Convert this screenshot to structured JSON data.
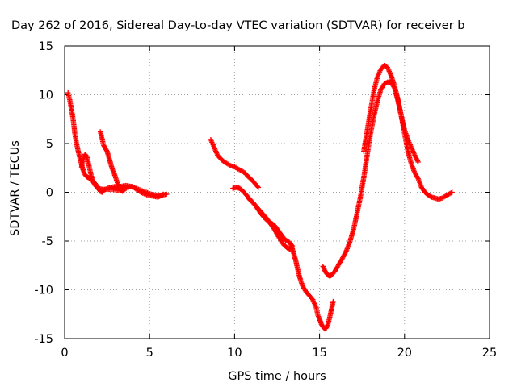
{
  "chart_data": {
    "type": "scatter",
    "title": "Day 262 of 2016, Sidereal Day-to-day VTEC variation (SDTVAR) for receiver b",
    "xlabel": "GPS time / hours",
    "ylabel": "SDTVAR / TECUs",
    "xlim": [
      0,
      25
    ],
    "ylim": [
      -15,
      15
    ],
    "x_ticks": [
      0,
      5,
      10,
      15,
      20,
      25
    ],
    "y_ticks": [
      -15,
      -10,
      -5,
      0,
      5,
      10,
      15
    ],
    "x_tick_labels": [
      "0",
      "5",
      "10",
      "15",
      "20",
      "25"
    ],
    "y_tick_labels": [
      "-15",
      "-10",
      "-5",
      "0",
      "5",
      "10",
      "15"
    ],
    "grid": true,
    "legend": "none",
    "marker": "plus",
    "color": "#ff0000",
    "series": [
      {
        "points": [
          [
            0.2,
            10.2
          ],
          [
            0.3,
            9.5
          ],
          [
            0.4,
            8.5
          ],
          [
            0.5,
            7.5
          ],
          [
            0.55,
            6.8
          ],
          [
            0.6,
            6.0
          ],
          [
            0.7,
            5.0
          ],
          [
            0.8,
            4.2
          ],
          [
            0.9,
            3.5
          ],
          [
            1.0,
            2.8
          ],
          [
            1.1,
            2.2
          ],
          [
            1.2,
            1.8
          ],
          [
            1.3,
            1.6
          ],
          [
            1.4,
            1.5
          ],
          [
            1.5,
            1.4
          ],
          [
            1.6,
            1.3
          ],
          [
            1.7,
            1.1
          ],
          [
            1.8,
            0.9
          ],
          [
            1.9,
            0.6
          ],
          [
            2.0,
            0.3
          ],
          [
            2.1,
            0.1
          ],
          [
            2.2,
            0.0
          ],
          [
            2.3,
            0.2
          ],
          [
            2.5,
            0.4
          ],
          [
            2.7,
            0.5
          ],
          [
            3.0,
            0.6
          ],
          [
            3.3,
            0.6
          ],
          [
            3.6,
            0.7
          ],
          [
            3.9,
            0.6
          ],
          [
            4.2,
            0.4
          ],
          [
            4.5,
            0.2
          ],
          [
            4.8,
            0.0
          ],
          [
            5.1,
            -0.2
          ],
          [
            5.4,
            -0.3
          ],
          [
            5.7,
            -0.3
          ],
          [
            6.0,
            -0.2
          ]
        ]
      },
      {
        "points": [
          [
            1.0,
            2.6
          ],
          [
            1.1,
            3.3
          ],
          [
            1.2,
            3.9
          ],
          [
            1.3,
            3.7
          ],
          [
            1.4,
            3.0
          ],
          [
            1.5,
            2.2
          ],
          [
            1.6,
            1.5
          ],
          [
            1.7,
            1.0
          ],
          [
            1.8,
            0.7
          ],
          [
            1.9,
            0.5
          ],
          [
            2.0,
            0.4
          ],
          [
            2.2,
            0.3
          ],
          [
            2.5,
            0.3
          ],
          [
            2.8,
            0.3
          ],
          [
            3.1,
            0.2
          ],
          [
            3.4,
            0.3
          ],
          [
            3.7,
            0.5
          ],
          [
            4.0,
            0.6
          ],
          [
            4.3,
            0.2
          ],
          [
            4.6,
            -0.1
          ],
          [
            4.9,
            -0.3
          ],
          [
            5.2,
            -0.4
          ],
          [
            5.5,
            -0.5
          ],
          [
            5.8,
            -0.2
          ]
        ]
      },
      {
        "points": [
          [
            2.1,
            6.2
          ],
          [
            2.2,
            5.5
          ],
          [
            2.3,
            4.8
          ],
          [
            2.4,
            4.5
          ],
          [
            2.5,
            4.2
          ],
          [
            2.6,
            3.6
          ],
          [
            2.7,
            3.0
          ],
          [
            2.8,
            2.4
          ],
          [
            2.9,
            2.0
          ],
          [
            3.0,
            1.5
          ],
          [
            3.1,
            1.0
          ],
          [
            3.2,
            0.5
          ],
          [
            3.3,
            0.2
          ],
          [
            3.4,
            0.1
          ],
          [
            3.5,
            0.2
          ]
        ]
      },
      {
        "points": [
          [
            8.6,
            5.4
          ],
          [
            8.7,
            5.0
          ],
          [
            8.8,
            4.6
          ],
          [
            8.9,
            4.2
          ],
          [
            9.0,
            3.8
          ],
          [
            9.2,
            3.4
          ],
          [
            9.4,
            3.1
          ],
          [
            9.6,
            2.9
          ],
          [
            9.8,
            2.7
          ],
          [
            10.0,
            2.6
          ],
          [
            10.2,
            2.4
          ],
          [
            10.4,
            2.2
          ],
          [
            10.6,
            2.0
          ],
          [
            10.8,
            1.6
          ],
          [
            11.0,
            1.3
          ],
          [
            11.2,
            0.9
          ],
          [
            11.4,
            0.5
          ]
        ]
      },
      {
        "points": [
          [
            9.9,
            0.4
          ],
          [
            10.1,
            0.5
          ],
          [
            10.3,
            0.4
          ],
          [
            10.5,
            0.1
          ],
          [
            10.7,
            -0.3
          ],
          [
            10.9,
            -0.7
          ],
          [
            11.1,
            -1.1
          ],
          [
            11.3,
            -1.5
          ],
          [
            11.5,
            -1.9
          ],
          [
            11.7,
            -2.3
          ],
          [
            11.9,
            -2.7
          ],
          [
            12.1,
            -3.2
          ],
          [
            12.3,
            -3.7
          ],
          [
            12.5,
            -4.3
          ],
          [
            12.7,
            -4.9
          ],
          [
            12.9,
            -5.4
          ],
          [
            13.1,
            -5.7
          ],
          [
            13.3,
            -5.9
          ]
        ]
      },
      {
        "points": [
          [
            10.8,
            -0.6
          ],
          [
            11.0,
            -0.9
          ],
          [
            11.2,
            -1.3
          ],
          [
            11.4,
            -1.8
          ],
          [
            11.6,
            -2.3
          ],
          [
            11.8,
            -2.7
          ],
          [
            12.0,
            -3.0
          ],
          [
            12.2,
            -3.2
          ],
          [
            12.4,
            -3.5
          ],
          [
            12.6,
            -4.0
          ],
          [
            12.8,
            -4.5
          ],
          [
            13.0,
            -4.9
          ],
          [
            13.2,
            -5.1
          ],
          [
            13.4,
            -5.5
          ]
        ]
      },
      {
        "points": [
          [
            13.3,
            -5.3
          ],
          [
            13.4,
            -5.8
          ],
          [
            13.5,
            -6.4
          ],
          [
            13.6,
            -7.0
          ],
          [
            13.7,
            -7.8
          ],
          [
            13.8,
            -8.5
          ],
          [
            13.9,
            -9.1
          ],
          [
            14.0,
            -9.6
          ],
          [
            14.2,
            -10.2
          ],
          [
            14.4,
            -10.6
          ],
          [
            14.6,
            -11.0
          ],
          [
            14.8,
            -11.8
          ],
          [
            14.9,
            -12.6
          ],
          [
            15.0,
            -13.0
          ],
          [
            15.1,
            -13.5
          ],
          [
            15.2,
            -13.8
          ],
          [
            15.3,
            -14.0
          ],
          [
            15.4,
            -13.9
          ],
          [
            15.5,
            -13.5
          ],
          [
            15.6,
            -12.8
          ],
          [
            15.7,
            -12.0
          ],
          [
            15.8,
            -11.2
          ]
        ]
      },
      {
        "points": [
          [
            15.2,
            -7.6
          ],
          [
            15.3,
            -8.0
          ],
          [
            15.4,
            -8.3
          ],
          [
            15.5,
            -8.5
          ],
          [
            15.6,
            -8.6
          ],
          [
            15.7,
            -8.5
          ],
          [
            15.8,
            -8.3
          ],
          [
            15.9,
            -8.1
          ],
          [
            16.0,
            -7.8
          ],
          [
            16.2,
            -7.2
          ],
          [
            16.4,
            -6.6
          ],
          [
            16.6,
            -5.9
          ],
          [
            16.8,
            -5.0
          ],
          [
            17.0,
            -3.8
          ],
          [
            17.2,
            -2.2
          ],
          [
            17.4,
            -0.5
          ],
          [
            17.6,
            1.5
          ],
          [
            17.8,
            3.8
          ],
          [
            18.0,
            6.0
          ],
          [
            18.2,
            7.8
          ],
          [
            18.4,
            9.3
          ],
          [
            18.6,
            10.5
          ],
          [
            18.8,
            11.1
          ],
          [
            19.0,
            11.3
          ],
          [
            19.2,
            11.3
          ],
          [
            19.4,
            10.7
          ],
          [
            19.6,
            9.5
          ],
          [
            19.8,
            7.9
          ],
          [
            20.0,
            6.4
          ],
          [
            20.2,
            5.4
          ],
          [
            20.4,
            4.6
          ],
          [
            20.6,
            3.8
          ],
          [
            20.8,
            3.1
          ]
        ]
      },
      {
        "points": [
          [
            17.6,
            4.2
          ],
          [
            17.8,
            6.3
          ],
          [
            18.0,
            8.4
          ],
          [
            18.2,
            10.4
          ],
          [
            18.4,
            11.8
          ],
          [
            18.6,
            12.6
          ],
          [
            18.8,
            13.0
          ],
          [
            19.0,
            12.8
          ],
          [
            19.2,
            12.0
          ],
          [
            19.4,
            11.0
          ],
          [
            19.6,
            9.6
          ],
          [
            19.8,
            7.9
          ],
          [
            20.0,
            6.0
          ],
          [
            20.2,
            4.2
          ],
          [
            20.4,
            2.9
          ],
          [
            20.6,
            2.0
          ],
          [
            20.8,
            1.4
          ],
          [
            21.0,
            0.5
          ],
          [
            21.2,
            0.0
          ],
          [
            21.4,
            -0.3
          ],
          [
            21.6,
            -0.5
          ],
          [
            21.8,
            -0.6
          ],
          [
            22.0,
            -0.7
          ],
          [
            22.2,
            -0.6
          ],
          [
            22.4,
            -0.4
          ],
          [
            22.6,
            -0.2
          ],
          [
            22.8,
            0.0
          ]
        ]
      }
    ]
  }
}
